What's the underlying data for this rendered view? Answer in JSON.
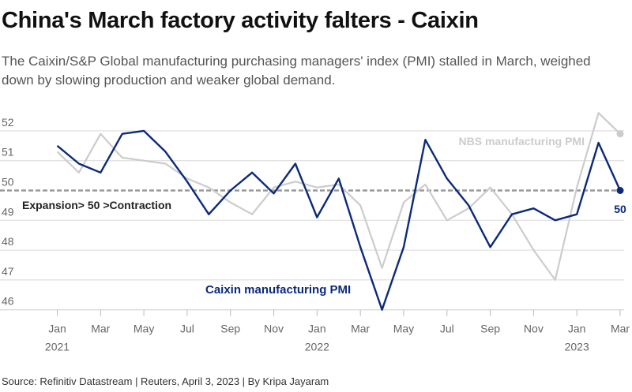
{
  "header": {
    "title": "China's March factory activity falters - Caixin",
    "subtitle": "The Caixin/S&P Global manufacturing purchasing managers' index (PMI) stalled in March, weighed down by slowing production and weaker global demand."
  },
  "footer": {
    "source": "Source: Refinitiv Datastream | Reuters, April 3, 2023 | By Kripa Jayaram"
  },
  "colors": {
    "caixin": "#0b2a7a",
    "nbs": "#cccccc",
    "threshold": "#999999",
    "grid": "#d9d9d9"
  },
  "chart_data": {
    "type": "line",
    "title": "China's March factory activity falters - Caixin",
    "ylim": [
      46,
      52.5
    ],
    "yticks": [
      46,
      47,
      48,
      49,
      50,
      51,
      52
    ],
    "x": [
      "2021-01",
      "2021-02",
      "2021-03",
      "2021-04",
      "2021-05",
      "2021-06",
      "2021-07",
      "2021-08",
      "2021-09",
      "2021-10",
      "2021-11",
      "2021-12",
      "2022-01",
      "2022-02",
      "2022-03",
      "2022-04",
      "2022-05",
      "2022-06",
      "2022-07",
      "2022-08",
      "2022-09",
      "2022-10",
      "2022-11",
      "2022-12",
      "2023-01",
      "2023-02",
      "2023-03"
    ],
    "xtick_labels": [
      {
        "month": "Jan",
        "year": "2021",
        "index": 0
      },
      {
        "month": "Mar",
        "year": "",
        "index": 2
      },
      {
        "month": "May",
        "year": "",
        "index": 4
      },
      {
        "month": "Jul",
        "year": "",
        "index": 6
      },
      {
        "month": "Sep",
        "year": "",
        "index": 8
      },
      {
        "month": "Nov",
        "year": "",
        "index": 10
      },
      {
        "month": "Jan",
        "year": "2022",
        "index": 12
      },
      {
        "month": "Mar",
        "year": "",
        "index": 14
      },
      {
        "month": "May",
        "year": "",
        "index": 16
      },
      {
        "month": "Jul",
        "year": "",
        "index": 18
      },
      {
        "month": "Sep",
        "year": "",
        "index": 20
      },
      {
        "month": "Nov",
        "year": "",
        "index": 22
      },
      {
        "month": "Jan",
        "year": "2023",
        "index": 24
      },
      {
        "month": "Mar",
        "year": "",
        "index": 26
      }
    ],
    "series": [
      {
        "name": "Caixin manufacturing PMI",
        "values": [
          51.5,
          50.9,
          50.6,
          51.9,
          52.0,
          51.3,
          50.3,
          49.2,
          50.0,
          50.6,
          49.9,
          50.9,
          49.1,
          50.4,
          48.1,
          46.0,
          48.1,
          51.7,
          50.4,
          49.5,
          48.1,
          49.2,
          49.4,
          49.0,
          49.2,
          51.6,
          50.0
        ]
      },
      {
        "name": "NBS manufacturing PMI",
        "values": [
          51.3,
          50.6,
          51.9,
          51.1,
          51.0,
          50.9,
          50.4,
          50.1,
          49.6,
          49.2,
          50.1,
          50.3,
          50.1,
          50.2,
          49.5,
          47.4,
          49.6,
          50.2,
          49.0,
          49.4,
          50.1,
          49.2,
          48.0,
          47.0,
          50.1,
          52.6,
          51.9
        ]
      }
    ],
    "threshold": 50,
    "annotations": {
      "threshold_label": "Expansion> 50 >Contraction",
      "last_value_label": "50"
    }
  }
}
